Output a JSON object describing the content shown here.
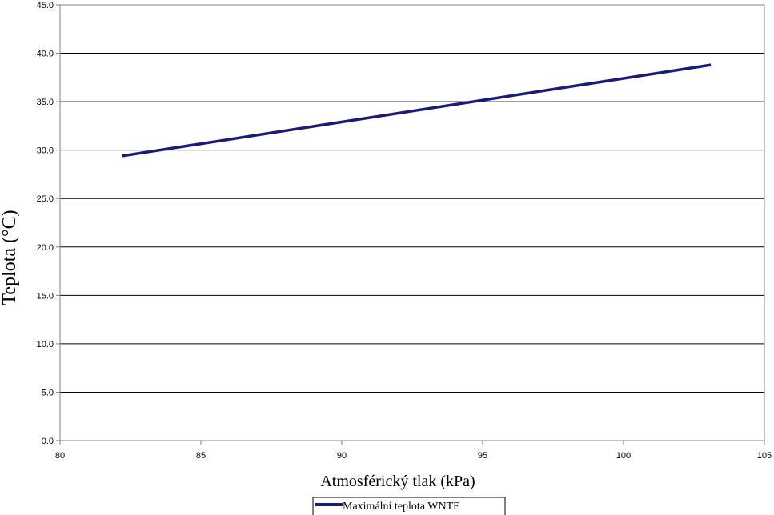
{
  "chart_data": {
    "type": "line",
    "title": "",
    "xlabel": "Atmosférický tlak (kPa)",
    "ylabel": "Teplota (°C)",
    "xlim": [
      80,
      105
    ],
    "ylim": [
      0,
      45
    ],
    "x_ticks": [
      80,
      85,
      90,
      95,
      100,
      105
    ],
    "y_ticks": [
      0,
      5,
      10,
      15,
      20,
      25,
      30,
      35,
      40,
      45
    ],
    "x_tick_labels": [
      "80",
      "85",
      "90",
      "95",
      "100",
      "105"
    ],
    "y_tick_labels": [
      "0.0",
      "5.0",
      "10.0",
      "15.0",
      "20.0",
      "25.0",
      "30.0",
      "35.0",
      "40.0",
      "45.0"
    ],
    "grid": "horizontal",
    "legend_position": "bottom",
    "series": [
      {
        "name": "Maximální teplota WNTE",
        "color": "#1a1a7a",
        "x": [
          82.2,
          103.1
        ],
        "y": [
          29.4,
          38.8
        ]
      }
    ]
  }
}
